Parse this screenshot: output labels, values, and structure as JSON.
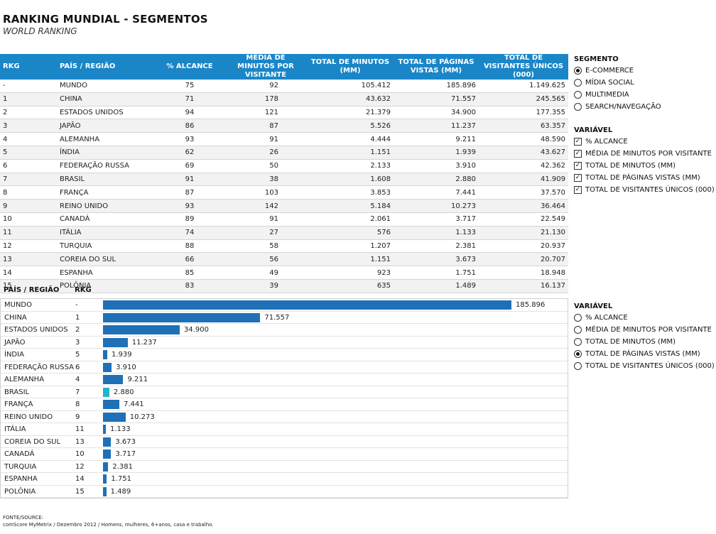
{
  "header": {
    "title": "RANKING MUNDIAL - SEGMENTOS",
    "subtitle": "WORLD RANKING"
  },
  "table": {
    "columns": {
      "rkg": "RKG",
      "pais": "PAÍS / REGIÃO",
      "alcance": "% ALCANCE",
      "media": "MÉDIA DE MINUTOS POR VISITANTE",
      "total_min": "TOTAL DE MINUTOS (MM)",
      "paginas": "TOTAL DE PÁGINAS VISTAS (MM)",
      "visitantes": "TOTAL DE VISITANTES ÚNICOS (000)"
    },
    "rows": [
      {
        "rkg": "-",
        "pais": "MUNDO",
        "alcance": "75",
        "media": "92",
        "total_min": "105.412",
        "paginas": "185.896",
        "visitantes": "1.149.625"
      },
      {
        "rkg": "1",
        "pais": "CHINA",
        "alcance": "71",
        "media": "178",
        "total_min": "43.632",
        "paginas": "71.557",
        "visitantes": "245.565"
      },
      {
        "rkg": "2",
        "pais": "ESTADOS UNIDOS",
        "alcance": "94",
        "media": "121",
        "total_min": "21.379",
        "paginas": "34.900",
        "visitantes": "177.355"
      },
      {
        "rkg": "3",
        "pais": "JAPÃO",
        "alcance": "86",
        "media": "87",
        "total_min": "5.526",
        "paginas": "11.237",
        "visitantes": "63.357"
      },
      {
        "rkg": "4",
        "pais": "ALEMANHA",
        "alcance": "93",
        "media": "91",
        "total_min": "4.444",
        "paginas": "9.211",
        "visitantes": "48.590"
      },
      {
        "rkg": "5",
        "pais": "ÍNDIA",
        "alcance": "62",
        "media": "26",
        "total_min": "1.151",
        "paginas": "1.939",
        "visitantes": "43.627"
      },
      {
        "rkg": "6",
        "pais": "FEDERAÇÃO RUSSA",
        "alcance": "69",
        "media": "50",
        "total_min": "2.133",
        "paginas": "3.910",
        "visitantes": "42.362"
      },
      {
        "rkg": "7",
        "pais": "BRASIL",
        "alcance": "91",
        "media": "38",
        "total_min": "1.608",
        "paginas": "2.880",
        "visitantes": "41.909"
      },
      {
        "rkg": "8",
        "pais": "FRANÇA",
        "alcance": "87",
        "media": "103",
        "total_min": "3.853",
        "paginas": "7.441",
        "visitantes": "37.570"
      },
      {
        "rkg": "9",
        "pais": "REINO UNIDO",
        "alcance": "93",
        "media": "142",
        "total_min": "5.184",
        "paginas": "10.273",
        "visitantes": "36.464"
      },
      {
        "rkg": "10",
        "pais": "CANADÁ",
        "alcance": "89",
        "media": "91",
        "total_min": "2.061",
        "paginas": "3.717",
        "visitantes": "22.549"
      },
      {
        "rkg": "11",
        "pais": "ITÁLIA",
        "alcance": "74",
        "media": "27",
        "total_min": "576",
        "paginas": "1.133",
        "visitantes": "21.130"
      },
      {
        "rkg": "12",
        "pais": "TURQUIA",
        "alcance": "88",
        "media": "58",
        "total_min": "1.207",
        "paginas": "2.381",
        "visitantes": "20.937"
      },
      {
        "rkg": "13",
        "pais": "COREIA DO SUL",
        "alcance": "66",
        "media": "56",
        "total_min": "1.151",
        "paginas": "3.673",
        "visitantes": "20.707"
      },
      {
        "rkg": "14",
        "pais": "ESPANHA",
        "alcance": "85",
        "media": "49",
        "total_min": "923",
        "paginas": "1.751",
        "visitantes": "18.948"
      },
      {
        "rkg": "15",
        "pais": "POLÔNIA",
        "alcance": "83",
        "media": "39",
        "total_min": "635",
        "paginas": "1.489",
        "visitantes": "16.137"
      }
    ]
  },
  "segment_panel": {
    "title": "SEGMENTO",
    "options": [
      "E-COMMERCE",
      "MÍDIA SOCIAL",
      "MULTIMEDIA",
      "SEARCH/NAVEGAÇÃO"
    ],
    "selected": 0
  },
  "variable_checks": {
    "title": "VARIÁVEL",
    "options": [
      "% ALCANCE",
      "MÉDIA DE MINUTOS POR VISITANTE",
      "TOTAL DE MINUTOS (MM)",
      "TOTAL DE PÁGINAS VISTAS (MM)",
      "TOTAL DE VISITANTES ÚNICOS (000)"
    ],
    "checked": [
      true,
      true,
      true,
      true,
      true
    ]
  },
  "variable_radios": {
    "title": "VARIÁVEL",
    "options": [
      "% ALCANCE",
      "MÉDIA DE MINUTOS POR VISITANTE",
      "TOTAL DE MINUTOS (MM)",
      "TOTAL DE PÁGINAS VISTAS (MM)",
      "TOTAL DE VISITANTES ÚNICOS (000)"
    ],
    "selected": 3
  },
  "chart_data": {
    "type": "bar",
    "orientation": "horizontal",
    "xlabel": "PAÍS / REGIÃO",
    "rank_label": "RKG",
    "metric": "TOTAL DE PÁGINAS VISTAS (MM)",
    "categories": [
      "MUNDO",
      "CHINA",
      "ESTADOS UNIDOS",
      "JAPÃO",
      "ÍNDIA",
      "FEDERAÇÃO RUSSA",
      "ALEMANHA",
      "BRASIL",
      "FRANÇA",
      "REINO UNIDO",
      "ITÁLIA",
      "COREIA DO SUL",
      "CANADÁ",
      "TURQUIA",
      "ESPANHA",
      "POLÔNIA"
    ],
    "ranks": [
      "-",
      "1",
      "2",
      "3",
      "5",
      "6",
      "4",
      "7",
      "8",
      "9",
      "11",
      "13",
      "10",
      "12",
      "14",
      "15"
    ],
    "values": [
      185896,
      71557,
      34900,
      11237,
      1939,
      3910,
      9211,
      2880,
      7441,
      10273,
      1133,
      3673,
      3717,
      2381,
      1751,
      1489
    ],
    "labels": [
      "185.896",
      "71.557",
      "34.900",
      "11.237",
      "1.939",
      "3.910",
      "9.211",
      "2.880",
      "7.441",
      "10.273",
      "1.133",
      "3.673",
      "3.717",
      "2.381",
      "1.751",
      "1.489"
    ],
    "highlight": "BRASIL",
    "colors": {
      "bar": "#1f70b6",
      "highlight": "#22b5c9"
    }
  },
  "source": {
    "label": "FONTE/SOURCE:",
    "text": "comScore MyMetrix / Dezembro 2012 / Homens, mulheres, 6+anos, casa e trabalho."
  }
}
